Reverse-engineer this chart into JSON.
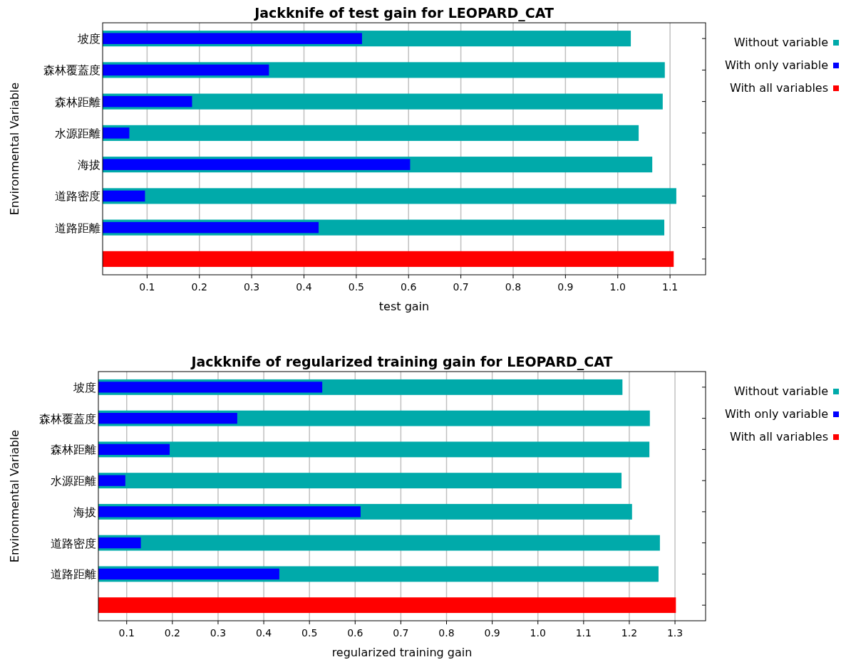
{
  "chart_data": [
    {
      "type": "bar",
      "orientation": "horizontal",
      "title": "Jackknife of test gain for LEOPARD_CAT",
      "xlabel": "test gain",
      "ylabel": "Environmental Variable",
      "categories": [
        "坡度",
        "森林覆蓋度",
        "森林距離",
        "水源距離",
        "海拔",
        "道路密度",
        "道路距離",
        null
      ],
      "series": [
        {
          "name": "Without variable",
          "color": "#00aaaa",
          "values": [
            1.025,
            1.09,
            1.086,
            1.04,
            1.066,
            1.112,
            1.089,
            null
          ]
        },
        {
          "name": "With only variable",
          "color": "#0000ff",
          "values": [
            0.511,
            0.333,
            0.186,
            0.066,
            0.603,
            0.096,
            0.428,
            null
          ]
        },
        {
          "name": "With all variables",
          "color": "#ff0000",
          "values": [
            null,
            null,
            null,
            null,
            null,
            null,
            null,
            1.107
          ]
        }
      ],
      "xlim": [
        0.015,
        1.168
      ],
      "xticks": [
        0.1,
        0.2,
        0.3,
        0.4,
        0.5,
        0.6,
        0.7,
        0.8,
        0.9,
        {
          "value": 1,
          "label": "1.0"
        },
        1.1
      ],
      "grid": "x",
      "legend": "top right"
    },
    {
      "type": "bar",
      "orientation": "horizontal",
      "title": "Jackknife of regularized training gain for LEOPARD_CAT",
      "xlabel": "regularized training gain",
      "ylabel": "Environmental Variable",
      "categories": [
        "坡度",
        "森林覆蓋度",
        "森林距離",
        "水源距離",
        "海拔",
        "道路密度",
        "道路距離",
        null
      ],
      "series": [
        {
          "name": "Without variable",
          "color": "#00aaaa",
          "values": [
            1.185,
            1.245,
            1.244,
            1.183,
            1.206,
            1.267,
            1.264,
            null
          ]
        },
        {
          "name": "With only variable",
          "color": "#0000ff",
          "values": [
            0.528,
            0.342,
            0.194,
            0.097,
            0.612,
            0.131,
            0.434,
            null
          ]
        },
        {
          "name": "With all variables",
          "color": "#ff0000",
          "values": [
            null,
            null,
            null,
            null,
            null,
            null,
            null,
            1.302
          ]
        }
      ],
      "xlim": [
        0.038,
        1.367
      ],
      "xticks": [
        0.1,
        0.2,
        0.3,
        0.4,
        0.5,
        0.6,
        0.7,
        0.8,
        0.9,
        {
          "value": 1,
          "label": "1.0"
        },
        1.1,
        1.2,
        1.3
      ],
      "grid": "x",
      "legend": "top right"
    }
  ]
}
